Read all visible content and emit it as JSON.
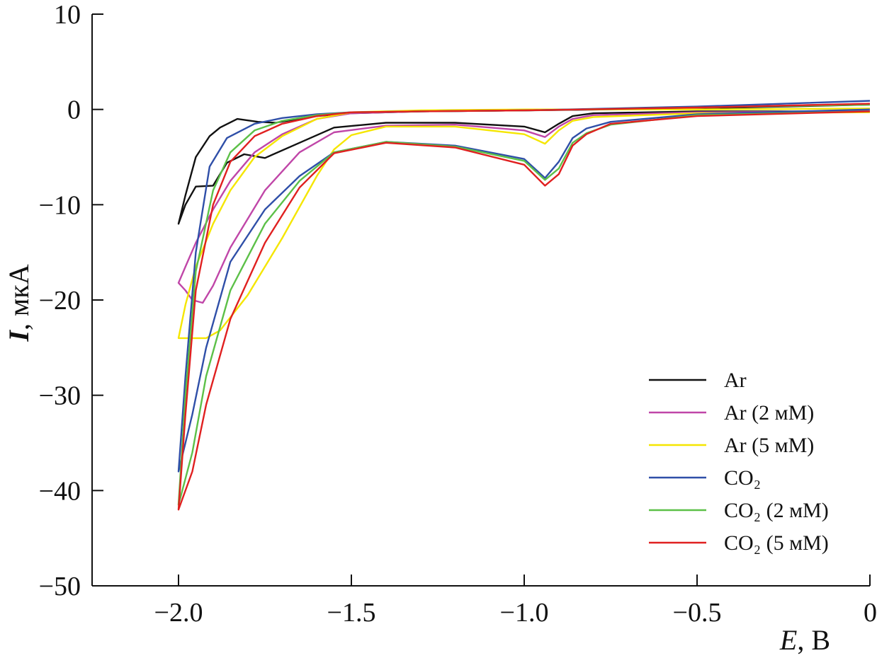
{
  "chart_data": {
    "type": "line",
    "xlabel_symbol": "E",
    "xlabel_unit": ", В",
    "ylabel_symbol": "I",
    "ylabel_unit": ", мкА",
    "xlim": [
      -2.25,
      0
    ],
    "ylim": [
      -50,
      10
    ],
    "xticks": [
      -2.0,
      -1.5,
      -1.0,
      -0.5,
      0
    ],
    "xtick_labels": [
      "−2.0",
      "−1.5",
      "−1.0",
      "−0.5",
      "0"
    ],
    "yticks": [
      10,
      0,
      -10,
      -20,
      -30,
      -40,
      -50
    ],
    "ytick_labels": [
      "10",
      "0",
      "−10",
      "−20",
      "−30",
      "−40",
      "−50"
    ],
    "grid": false,
    "legend_position": "bottom-right",
    "series": [
      {
        "name": "Ar",
        "color": "#111111",
        "x": [
          0,
          -0.5,
          -0.8,
          -0.86,
          -0.9,
          -0.94,
          -1.0,
          -1.2,
          -1.4,
          -1.55,
          -1.65,
          -1.75,
          -1.81,
          -1.86,
          -1.9,
          -1.95,
          -1.98,
          -2.0,
          -1.98,
          -1.95,
          -1.91,
          -1.88,
          -1.83,
          -1.77,
          -1.72,
          -1.6,
          -1.5,
          -1.3,
          -1.0,
          -0.5,
          0
        ],
        "y": [
          -0.2,
          -0.2,
          -0.4,
          -0.7,
          -1.5,
          -2.4,
          -1.8,
          -1.4,
          -1.4,
          -1.9,
          -3.5,
          -5.1,
          -4.7,
          -5.6,
          -8.0,
          -8.1,
          -10.0,
          -12.0,
          -9.0,
          -5.0,
          -2.8,
          -1.9,
          -1.0,
          -1.3,
          -1.4,
          -0.7,
          -0.4,
          -0.2,
          -0.1,
          0.1,
          0.5
        ]
      },
      {
        "name": "Ar (2 мМ)",
        "color": "#c046a8",
        "x": [
          0,
          -0.5,
          -0.8,
          -0.86,
          -0.9,
          -0.94,
          -1.0,
          -1.2,
          -1.4,
          -1.55,
          -1.65,
          -1.75,
          -1.85,
          -1.9,
          -1.93,
          -1.96,
          -1.98,
          -2.0,
          -1.98,
          -1.95,
          -1.9,
          -1.85,
          -1.78,
          -1.7,
          -1.6,
          -1.5,
          -1.3,
          -1.0,
          -0.5,
          0
        ],
        "y": [
          -0.2,
          -0.3,
          -0.6,
          -1.0,
          -1.8,
          -2.9,
          -2.2,
          -1.6,
          -1.7,
          -2.4,
          -4.5,
          -8.5,
          -14.5,
          -18.5,
          -20.3,
          -20.0,
          -19.0,
          -18.2,
          -16.5,
          -14.0,
          -10.5,
          -7.5,
          -4.5,
          -2.6,
          -1.0,
          -0.4,
          -0.2,
          -0.1,
          0.2,
          0.6
        ]
      },
      {
        "name": "Ar (5 мМ)",
        "color": "#f5e600",
        "x": [
          0,
          -0.5,
          -0.8,
          -0.86,
          -0.9,
          -0.94,
          -1.0,
          -1.2,
          -1.4,
          -1.5,
          -1.55,
          -1.6,
          -1.7,
          -1.8,
          -1.88,
          -1.92,
          -1.96,
          -2.0,
          -1.98,
          -1.95,
          -1.9,
          -1.85,
          -1.78,
          -1.7,
          -1.6,
          -1.5,
          -1.3,
          -1.0,
          -0.5,
          0
        ],
        "y": [
          -0.3,
          -0.4,
          -0.8,
          -1.2,
          -2.2,
          -3.6,
          -2.6,
          -1.8,
          -1.8,
          -2.7,
          -4.2,
          -7.0,
          -13.5,
          -19.5,
          -23.2,
          -24.0,
          -24.0,
          -24.0,
          -20.5,
          -16.5,
          -12.0,
          -8.5,
          -5.0,
          -2.8,
          -1.0,
          -0.3,
          -0.1,
          0.0,
          0.0,
          0.1
        ]
      },
      {
        "name": "CO₂",
        "color": "#2f4fa8",
        "x": [
          0,
          -0.5,
          -0.75,
          -0.82,
          -0.86,
          -0.9,
          -0.94,
          -1.0,
          -1.2,
          -1.4,
          -1.55,
          -1.65,
          -1.75,
          -1.85,
          -1.92,
          -1.96,
          -2.0,
          -1.98,
          -1.95,
          -1.91,
          -1.86,
          -1.78,
          -1.7,
          -1.6,
          -1.5,
          -1.3,
          -1.0,
          -0.5,
          0
        ],
        "y": [
          0.0,
          -0.5,
          -1.3,
          -2.0,
          -3.0,
          -5.5,
          -7.2,
          -5.2,
          -3.8,
          -3.4,
          -4.5,
          -7.0,
          -10.5,
          -16.0,
          -25.0,
          -32.0,
          -38.0,
          -28.0,
          -15.0,
          -6.0,
          -3.0,
          -1.5,
          -0.9,
          -0.5,
          -0.3,
          -0.2,
          -0.1,
          0.3,
          0.9
        ]
      },
      {
        "name": "CO₂ (2 мМ)",
        "color": "#5cc048",
        "x": [
          0,
          -0.5,
          -0.75,
          -0.82,
          -0.86,
          -0.9,
          -0.94,
          -1.0,
          -1.2,
          -1.4,
          -1.55,
          -1.65,
          -1.75,
          -1.85,
          -1.92,
          -1.96,
          -2.0,
          -1.98,
          -1.95,
          -1.9,
          -1.85,
          -1.78,
          -1.7,
          -1.6,
          -1.5,
          -1.3,
          -1.0,
          -0.5,
          0
        ],
        "y": [
          -0.2,
          -0.6,
          -1.6,
          -2.5,
          -3.5,
          -6.2,
          -7.4,
          -5.4,
          -3.9,
          -3.4,
          -4.5,
          -7.5,
          -12.0,
          -19.0,
          -28.0,
          -36.0,
          -41.5,
          -30.0,
          -17.0,
          -8.5,
          -4.5,
          -2.2,
          -1.2,
          -0.6,
          -0.3,
          -0.2,
          -0.1,
          0.2,
          0.5
        ]
      },
      {
        "name": "CO₂ (5 мМ)",
        "color": "#e02020",
        "x": [
          0,
          -0.5,
          -0.75,
          -0.82,
          -0.86,
          -0.9,
          -0.94,
          -1.0,
          -1.2,
          -1.4,
          -1.55,
          -1.65,
          -1.75,
          -1.85,
          -1.92,
          -1.96,
          -2.0,
          -1.98,
          -1.95,
          -1.9,
          -1.85,
          -1.78,
          -1.7,
          -1.6,
          -1.5,
          -1.3,
          -1.0,
          -0.5,
          0
        ],
        "y": [
          -0.2,
          -0.7,
          -1.5,
          -2.6,
          -3.8,
          -6.8,
          -8.0,
          -5.8,
          -4.0,
          -3.5,
          -4.6,
          -8.2,
          -14.0,
          -22.0,
          -31.0,
          -38.0,
          -42.0,
          -32.0,
          -19.0,
          -10.0,
          -5.5,
          -2.8,
          -1.5,
          -0.7,
          -0.3,
          -0.2,
          -0.1,
          0.2,
          0.6
        ]
      }
    ]
  }
}
